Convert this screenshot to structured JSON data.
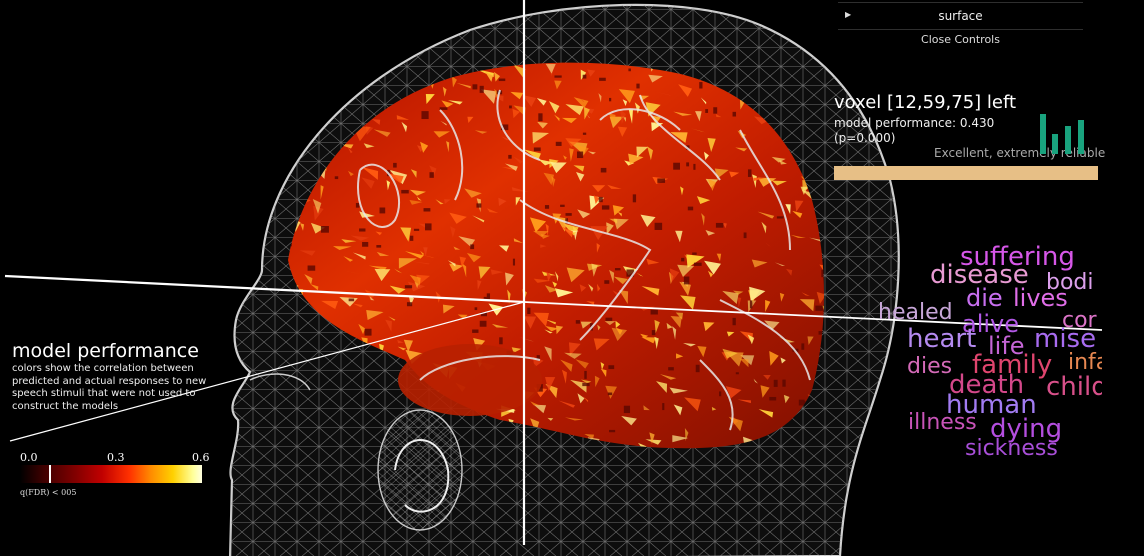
{
  "controls": {
    "surface_label": "surface",
    "close_label": "Close Controls"
  },
  "voxel": {
    "title": "voxel [12,59,75] left",
    "performance_line": "model performance: 0.430",
    "p_line": "(p=0.000)",
    "reliability": "Excellent, extremely reliable",
    "performance_fraction": 1.0,
    "bar_color": "#e7bf86",
    "signal_icon_color": "#19a37e"
  },
  "legend": {
    "title": "model performance",
    "description": "colors show the correlation between predicted and actual responses to new speech stimuli that were not used to construct the models",
    "colorbar": {
      "min_label": "0.0",
      "mid_label": "0.3",
      "max_label": "0.6",
      "threshold_value": 0.05
    },
    "threshold_label": "q(FDR) < 005"
  },
  "word_cloud": [
    {
      "word": "suffering",
      "color": "#d657e8"
    },
    {
      "word": "disease",
      "color": "#e89ad3"
    },
    {
      "word": "bodi",
      "color": "#dca0ec"
    },
    {
      "word": "die",
      "color": "#c86ff0"
    },
    {
      "word": "lives",
      "color": "#e06ee8"
    },
    {
      "word": "healed",
      "color": "#c7a6d8"
    },
    {
      "word": "alive",
      "color": "#b258e6"
    },
    {
      "word": "cor",
      "color": "#dc74c8"
    },
    {
      "word": "heart",
      "color": "#b48aef"
    },
    {
      "word": "life",
      "color": "#c565d6"
    },
    {
      "word": "mise",
      "color": "#a86cf0"
    },
    {
      "word": "dies",
      "color": "#d46ab8"
    },
    {
      "word": "family",
      "color": "#e0456e"
    },
    {
      "word": "infa",
      "color": "#e78852"
    },
    {
      "word": "death",
      "color": "#d4488a"
    },
    {
      "word": "child",
      "color": "#d8508a"
    },
    {
      "word": "human",
      "color": "#a27cf2"
    },
    {
      "word": "illness",
      "color": "#c854b8"
    },
    {
      "word": "dying",
      "color": "#b44ee0"
    },
    {
      "word": "sickness",
      "color": "#a84fd8"
    }
  ]
}
